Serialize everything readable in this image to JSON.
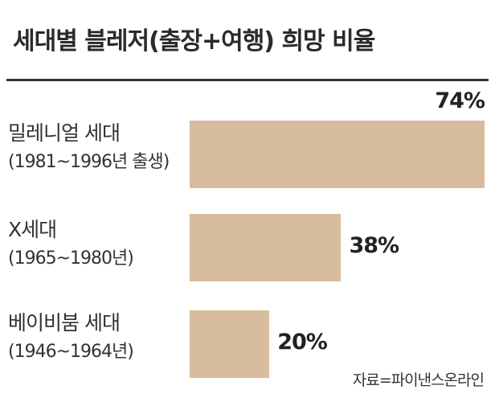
{
  "title": "세대별 블레저(출장+여행) 희망 비율",
  "source": "자료=파이낸스온라인",
  "colors": {
    "bar": "#d7bc9e",
    "divider": "#333333"
  },
  "chart_data": {
    "type": "bar",
    "orientation": "horizontal",
    "categories": [
      "밀레니얼 세대",
      "X세대",
      "베이비붐 세대"
    ],
    "category_years": [
      "(1981~1996년 출생)",
      "(1965~1980년)",
      "(1946~1964년)"
    ],
    "values": [
      74,
      38,
      20
    ],
    "value_labels": [
      "74%",
      "38%",
      "20%"
    ],
    "unit": "%",
    "xlim": [
      0,
      100
    ]
  }
}
